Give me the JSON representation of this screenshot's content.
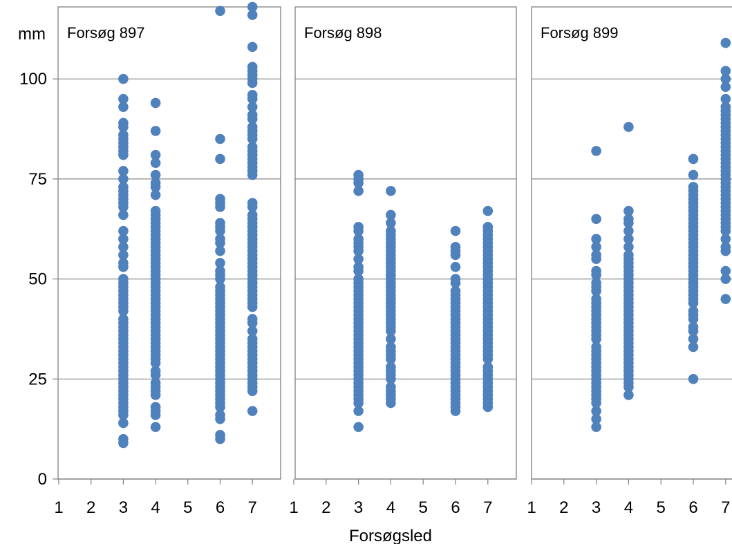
{
  "chart_data": {
    "type": "scatter",
    "ylabel": "mm",
    "xlabel": "Forsøgsled",
    "ylim": [
      0,
      118
    ],
    "yticks": [
      0,
      25,
      50,
      75,
      100
    ],
    "xticks": [
      1,
      2,
      3,
      4,
      5,
      6,
      7
    ],
    "xlim": [
      1,
      7.5
    ],
    "grid": true,
    "marker_color": "#4F81BD",
    "panels": [
      {
        "title": "Forsøg 897",
        "points": {
          "3": [
            9,
            10,
            14,
            16,
            17,
            18,
            19,
            20,
            21,
            22,
            23,
            24,
            25,
            26,
            27,
            28,
            29,
            30,
            31,
            32,
            33,
            34,
            35,
            36,
            37,
            38,
            39,
            40,
            42,
            43,
            44,
            45,
            46,
            47,
            48,
            49,
            50,
            53,
            54,
            56,
            58,
            60,
            62,
            66,
            68,
            69,
            70,
            71,
            72,
            73,
            75,
            77,
            81,
            82,
            83,
            84,
            85,
            86,
            88,
            89,
            93,
            95,
            100
          ],
          "4": [
            13,
            16,
            17,
            18,
            21,
            22,
            23,
            24,
            26,
            27,
            29,
            30,
            31,
            32,
            33,
            34,
            35,
            36,
            37,
            38,
            39,
            40,
            41,
            42,
            43,
            44,
            45,
            46,
            47,
            48,
            49,
            50,
            51,
            52,
            53,
            54,
            55,
            56,
            57,
            58,
            59,
            60,
            61,
            62,
            63,
            64,
            65,
            66,
            67,
            71,
            73,
            74,
            76,
            79,
            81,
            87,
            94
          ],
          "6": [
            10,
            11,
            15,
            16,
            18,
            19,
            20,
            21,
            22,
            23,
            24,
            25,
            26,
            27,
            28,
            29,
            30,
            31,
            32,
            33,
            34,
            35,
            36,
            37,
            38,
            39,
            40,
            41,
            42,
            43,
            44,
            45,
            46,
            47,
            48,
            50,
            51,
            52,
            54,
            57,
            59,
            60,
            62,
            63,
            64,
            68,
            69,
            70,
            80,
            85,
            117
          ],
          "7": [
            17,
            22,
            23,
            24,
            25,
            26,
            27,
            28,
            29,
            30,
            31,
            32,
            33,
            34,
            35,
            37,
            39,
            40,
            43,
            44,
            45,
            46,
            47,
            48,
            49,
            50,
            51,
            52,
            53,
            54,
            55,
            56,
            57,
            58,
            59,
            60,
            61,
            62,
            63,
            64,
            65,
            66,
            68,
            69,
            76,
            77,
            78,
            79,
            80,
            81,
            82,
            83,
            85,
            86,
            87,
            88,
            90,
            91,
            93,
            95,
            96,
            99,
            100,
            101,
            102,
            103,
            108,
            116,
            118
          ]
        }
      },
      {
        "title": "Forsøg 898",
        "points": {
          "3": [
            13,
            17,
            19,
            20,
            21,
            22,
            23,
            24,
            25,
            26,
            27,
            28,
            29,
            30,
            31,
            32,
            33,
            34,
            35,
            36,
            37,
            38,
            39,
            40,
            41,
            42,
            43,
            44,
            45,
            46,
            47,
            48,
            49,
            50,
            52,
            53,
            55,
            57,
            58,
            59,
            60,
            62,
            63,
            72,
            74,
            75,
            76
          ],
          "4": [
            19,
            20,
            21,
            22,
            23,
            25,
            26,
            27,
            28,
            30,
            31,
            32,
            33,
            35,
            37,
            38,
            39,
            40,
            41,
            42,
            43,
            44,
            45,
            46,
            47,
            48,
            49,
            50,
            51,
            52,
            53,
            54,
            55,
            56,
            57,
            58,
            59,
            60,
            61,
            62,
            64,
            66,
            72
          ],
          "6": [
            17,
            18,
            19,
            20,
            21,
            22,
            23,
            24,
            25,
            26,
            27,
            28,
            29,
            30,
            31,
            32,
            33,
            34,
            35,
            36,
            37,
            38,
            39,
            40,
            41,
            42,
            43,
            44,
            45,
            46,
            47,
            49,
            50,
            53,
            56,
            57,
            58,
            62
          ],
          "7": [
            18,
            19,
            20,
            21,
            22,
            23,
            24,
            25,
            26,
            27,
            28,
            30,
            31,
            32,
            33,
            34,
            35,
            36,
            37,
            38,
            39,
            40,
            41,
            42,
            43,
            44,
            45,
            46,
            47,
            48,
            49,
            50,
            51,
            52,
            53,
            54,
            55,
            56,
            57,
            58,
            59,
            60,
            61,
            62,
            63,
            67
          ]
        }
      },
      {
        "title": "Forsøg 899",
        "points": {
          "3": [
            13,
            15,
            17,
            19,
            20,
            21,
            22,
            23,
            24,
            25,
            26,
            27,
            28,
            29,
            30,
            31,
            32,
            33,
            35,
            36,
            37,
            38,
            39,
            40,
            41,
            42,
            43,
            44,
            45,
            47,
            48,
            49,
            51,
            52,
            55,
            56,
            58,
            60,
            65,
            82
          ],
          "4": [
            21,
            23,
            24,
            25,
            26,
            27,
            28,
            29,
            30,
            31,
            32,
            33,
            34,
            35,
            36,
            37,
            38,
            39,
            40,
            41,
            42,
            43,
            44,
            45,
            46,
            47,
            48,
            49,
            50,
            51,
            52,
            53,
            54,
            55,
            56,
            58,
            60,
            62,
            64,
            65,
            67,
            88
          ],
          "6": [
            25,
            33,
            35,
            37,
            38,
            40,
            41,
            42,
            44,
            45,
            46,
            47,
            48,
            49,
            50,
            51,
            52,
            53,
            54,
            55,
            56,
            57,
            58,
            59,
            60,
            61,
            62,
            63,
            64,
            65,
            66,
            67,
            68,
            69,
            70,
            71,
            72,
            73,
            76,
            80
          ],
          "7": [
            45,
            50,
            52,
            57,
            58,
            60,
            62,
            63,
            64,
            65,
            66,
            67,
            68,
            69,
            70,
            71,
            72,
            73,
            74,
            75,
            76,
            77,
            78,
            79,
            80,
            81,
            82,
            83,
            84,
            85,
            86,
            87,
            88,
            89,
            90,
            91,
            92,
            93,
            95,
            98,
            100,
            102,
            109
          ]
        }
      }
    ]
  }
}
